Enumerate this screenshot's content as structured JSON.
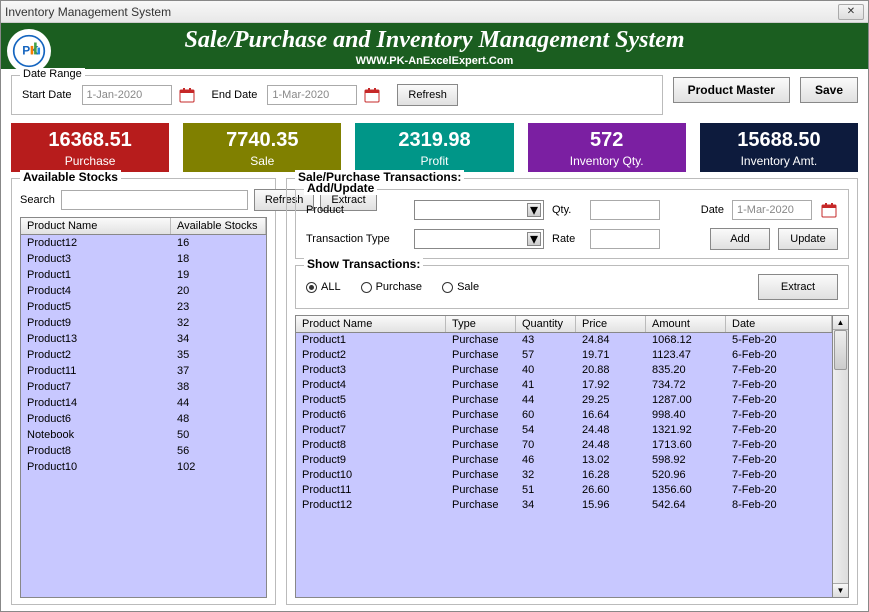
{
  "window": {
    "title": "Inventory Management System"
  },
  "header": {
    "title": "Sale/Purchase and Inventory Management System",
    "subtitle": "WWW.PK-AnExcelExpert.Com"
  },
  "dateRange": {
    "legend": "Date Range",
    "startLabel": "Start Date",
    "startValue": "1-Jan-2020",
    "endLabel": "End Date",
    "endValue": "1-Mar-2020",
    "refresh": "Refresh"
  },
  "topButtons": {
    "productMaster": "Product Master",
    "save": "Save"
  },
  "metrics": [
    {
      "value": "16368.51",
      "label": "Purchase",
      "bg": "#b71c1c"
    },
    {
      "value": "7740.35",
      "label": "Sale",
      "bg": "#808000"
    },
    {
      "value": "2319.98",
      "label": "Profit",
      "bg": "#009688"
    },
    {
      "value": "572",
      "label": "Inventory Qty.",
      "bg": "#7b1fa2"
    },
    {
      "value": "15688.50",
      "label": "Inventory Amt.",
      "bg": "#0d1b3d"
    }
  ],
  "stocks": {
    "legend": "Available Stocks",
    "searchLabel": "Search",
    "refresh": "Refresh",
    "extract": "Extract",
    "columns": [
      "Product Name",
      "Available Stocks"
    ],
    "rows": [
      [
        "Product12",
        "16"
      ],
      [
        "Product3",
        "18"
      ],
      [
        "Product1",
        "19"
      ],
      [
        "Product4",
        "20"
      ],
      [
        "Product5",
        "23"
      ],
      [
        "Product9",
        "32"
      ],
      [
        "Product13",
        "34"
      ],
      [
        "Product2",
        "35"
      ],
      [
        "Product11",
        "37"
      ],
      [
        "Product7",
        "38"
      ],
      [
        "Product14",
        "44"
      ],
      [
        "Product6",
        "48"
      ],
      [
        "Notebook",
        "50"
      ],
      [
        "Product8",
        "56"
      ],
      [
        "Product10",
        "102"
      ]
    ]
  },
  "trans": {
    "legend": "Sale/Purchase Transactions:",
    "addUpdate": {
      "legend": "Add/Update",
      "productLabel": "Product",
      "qtyLabel": "Qty.",
      "dateLabel": "Date",
      "dateValue": "1-Mar-2020",
      "typeLabel": "Transaction Type",
      "rateLabel": "Rate",
      "add": "Add",
      "update": "Update"
    },
    "show": {
      "legend": "Show Transactions:",
      "all": "ALL",
      "purchase": "Purchase",
      "sale": "Sale",
      "extract": "Extract",
      "selected": "ALL"
    },
    "columns": [
      "Product Name",
      "Type",
      "Quantity",
      "Price",
      "Amount",
      "Date"
    ],
    "rows": [
      [
        "Product1",
        "Purchase",
        "43",
        "24.84",
        "1068.12",
        "5-Feb-20"
      ],
      [
        "Product2",
        "Purchase",
        "57",
        "19.71",
        "1123.47",
        "6-Feb-20"
      ],
      [
        "Product3",
        "Purchase",
        "40",
        "20.88",
        "835.20",
        "7-Feb-20"
      ],
      [
        "Product4",
        "Purchase",
        "41",
        "17.92",
        "734.72",
        "7-Feb-20"
      ],
      [
        "Product5",
        "Purchase",
        "44",
        "29.25",
        "1287.00",
        "7-Feb-20"
      ],
      [
        "Product6",
        "Purchase",
        "60",
        "16.64",
        "998.40",
        "7-Feb-20"
      ],
      [
        "Product7",
        "Purchase",
        "54",
        "24.48",
        "1321.92",
        "7-Feb-20"
      ],
      [
        "Product8",
        "Purchase",
        "70",
        "24.48",
        "1713.60",
        "7-Feb-20"
      ],
      [
        "Product9",
        "Purchase",
        "46",
        "13.02",
        "598.92",
        "7-Feb-20"
      ],
      [
        "Product10",
        "Purchase",
        "32",
        "16.28",
        "520.96",
        "7-Feb-20"
      ],
      [
        "Product11",
        "Purchase",
        "51",
        "26.60",
        "1356.60",
        "7-Feb-20"
      ],
      [
        "Product12",
        "Purchase",
        "34",
        "15.96",
        "542.64",
        "8-Feb-20"
      ]
    ]
  }
}
